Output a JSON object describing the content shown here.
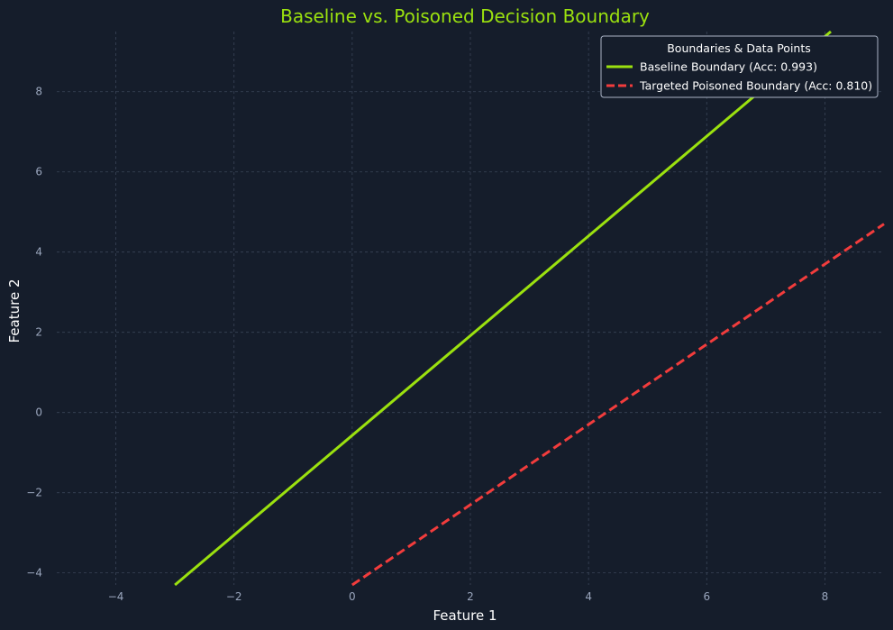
{
  "chart_data": {
    "type": "line",
    "title": "Baseline vs. Poisoned Decision Boundary",
    "xlabel": "Feature 1",
    "ylabel": "Feature 2",
    "xlim": [
      -5.0,
      9.0
    ],
    "ylim": [
      -4.3,
      9.5
    ],
    "xticks": [
      -4,
      -2,
      0,
      2,
      4,
      6,
      8
    ],
    "yticks": [
      -4,
      -2,
      0,
      2,
      4,
      6,
      8
    ],
    "grid": true,
    "legend": {
      "title": "Boundaries & Data Points",
      "position": "top-right"
    },
    "series": [
      {
        "name": "Baseline Boundary (Acc: 0.993)",
        "style": "solid",
        "color": "#9be10f",
        "x": [
          -3.0,
          8.1
        ],
        "y": [
          -4.3,
          9.5
        ]
      },
      {
        "name": "Targeted Poisoned Boundary (Acc: 0.810)",
        "style": "dashed",
        "color": "#f23c3c",
        "x": [
          0.0,
          9.0
        ],
        "y": [
          -4.3,
          4.7
        ]
      }
    ]
  },
  "colors": {
    "background": "#151d2b",
    "grid": "#3a4558",
    "title": "#9be10f",
    "tick_text": "#9aa6bd",
    "label_text": "#ffffff",
    "legend_border": "#aab4c6"
  }
}
